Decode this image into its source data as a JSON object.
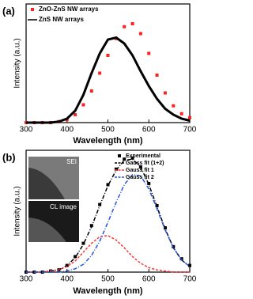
{
  "chart_data": [
    {
      "type": "line",
      "panel_label": "(a)",
      "xlabel": "Wavelength (nm)",
      "ylabel": "Intensity (a.u.)",
      "xlim": [
        300,
        700
      ],
      "xticks": [
        300,
        400,
        500,
        600,
        700
      ],
      "ylim": [
        0,
        1.2
      ],
      "legend": "upper left",
      "x": [
        300,
        320,
        340,
        360,
        380,
        400,
        420,
        440,
        460,
        480,
        500,
        520,
        540,
        560,
        580,
        600,
        620,
        640,
        660,
        680,
        700
      ],
      "series": [
        {
          "name": "ZnO-ZnS NW arrays",
          "color": "#ff2020",
          "style": "markers",
          "values": [
            0,
            0,
            0,
            0,
            0.01,
            0.03,
            0.08,
            0.18,
            0.32,
            0.5,
            0.68,
            0.85,
            0.97,
            1.0,
            0.9,
            0.7,
            0.48,
            0.3,
            0.17,
            0.09,
            0.05
          ]
        },
        {
          "name": "ZnS NW arrays",
          "color": "#000000",
          "style": "solid",
          "values": [
            0,
            0,
            0,
            0,
            0.01,
            0.04,
            0.12,
            0.28,
            0.5,
            0.7,
            0.84,
            0.86,
            0.8,
            0.68,
            0.52,
            0.37,
            0.24,
            0.14,
            0.08,
            0.04,
            0.02
          ]
        }
      ]
    },
    {
      "type": "line",
      "panel_label": "(b)",
      "xlabel": "Wavelength (nm)",
      "ylabel": "Intensity (a.u.)",
      "xlim": [
        300,
        700
      ],
      "xticks": [
        300,
        400,
        500,
        600,
        700
      ],
      "ylim": [
        0,
        1.1
      ],
      "legend": "upper right",
      "inset_labels": [
        "SEI",
        "CL image"
      ],
      "x": [
        300,
        320,
        340,
        360,
        380,
        400,
        420,
        440,
        460,
        480,
        500,
        520,
        540,
        560,
        580,
        600,
        620,
        640,
        660,
        680,
        700
      ],
      "series": [
        {
          "name": "Experimental",
          "color": "#000000",
          "style": "markers",
          "values": [
            0,
            0,
            0,
            0.01,
            0.02,
            0.06,
            0.14,
            0.26,
            0.42,
            0.61,
            0.79,
            0.93,
            1.02,
            1.03,
            0.95,
            0.8,
            0.6,
            0.4,
            0.23,
            0.12,
            0.06
          ]
        },
        {
          "name": "Gauss fit (1+2)",
          "color": "#000000",
          "style": "dashdot",
          "values": [
            0,
            0,
            0,
            0.01,
            0.02,
            0.06,
            0.13,
            0.25,
            0.41,
            0.6,
            0.78,
            0.92,
            1.01,
            1.02,
            0.95,
            0.79,
            0.59,
            0.39,
            0.22,
            0.11,
            0.05
          ]
        },
        {
          "name": "Gauss fit 1",
          "color": "#ff3030",
          "style": "dashed",
          "values": [
            0,
            0,
            0,
            0.01,
            0.02,
            0.05,
            0.1,
            0.18,
            0.26,
            0.32,
            0.33,
            0.29,
            0.22,
            0.14,
            0.08,
            0.04,
            0.02,
            0.01,
            0,
            0,
            0
          ]
        },
        {
          "name": "Gauss fit 2",
          "color": "#2255dd",
          "style": "dashdot",
          "values": [
            0,
            0,
            0,
            0,
            0,
            0.01,
            0.03,
            0.07,
            0.15,
            0.28,
            0.45,
            0.63,
            0.79,
            0.88,
            0.87,
            0.75,
            0.57,
            0.38,
            0.22,
            0.11,
            0.05
          ]
        }
      ]
    }
  ]
}
